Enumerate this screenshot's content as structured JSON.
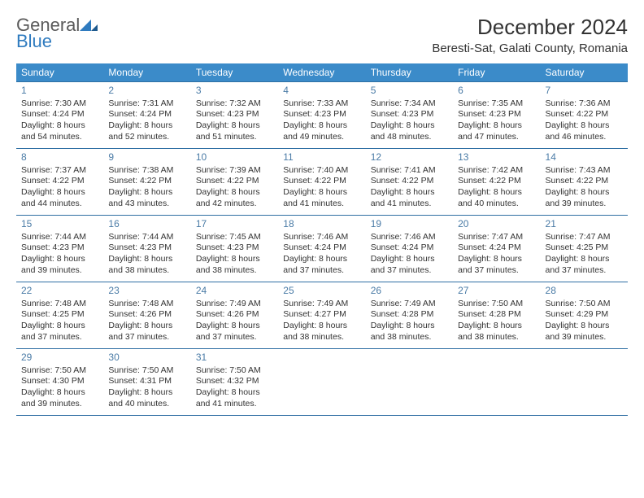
{
  "brand": {
    "word1": "General",
    "word2": "Blue"
  },
  "title": "December 2024",
  "location": "Beresti-Sat, Galati County, Romania",
  "colors": {
    "header_bg": "#3b8bc9",
    "header_text": "#ffffff",
    "border": "#2f6fa3",
    "daynum": "#4a7ba6",
    "body_text": "#333333",
    "brand_gray": "#5a5a5a",
    "brand_blue": "#2f7bbf"
  },
  "weekdays": [
    "Sunday",
    "Monday",
    "Tuesday",
    "Wednesday",
    "Thursday",
    "Friday",
    "Saturday"
  ],
  "days": [
    {
      "n": "1",
      "sr": "7:30 AM",
      "ss": "4:24 PM",
      "dl": "8 hours and 54 minutes."
    },
    {
      "n": "2",
      "sr": "7:31 AM",
      "ss": "4:24 PM",
      "dl": "8 hours and 52 minutes."
    },
    {
      "n": "3",
      "sr": "7:32 AM",
      "ss": "4:23 PM",
      "dl": "8 hours and 51 minutes."
    },
    {
      "n": "4",
      "sr": "7:33 AM",
      "ss": "4:23 PM",
      "dl": "8 hours and 49 minutes."
    },
    {
      "n": "5",
      "sr": "7:34 AM",
      "ss": "4:23 PM",
      "dl": "8 hours and 48 minutes."
    },
    {
      "n": "6",
      "sr": "7:35 AM",
      "ss": "4:23 PM",
      "dl": "8 hours and 47 minutes."
    },
    {
      "n": "7",
      "sr": "7:36 AM",
      "ss": "4:22 PM",
      "dl": "8 hours and 46 minutes."
    },
    {
      "n": "8",
      "sr": "7:37 AM",
      "ss": "4:22 PM",
      "dl": "8 hours and 44 minutes."
    },
    {
      "n": "9",
      "sr": "7:38 AM",
      "ss": "4:22 PM",
      "dl": "8 hours and 43 minutes."
    },
    {
      "n": "10",
      "sr": "7:39 AM",
      "ss": "4:22 PM",
      "dl": "8 hours and 42 minutes."
    },
    {
      "n": "11",
      "sr": "7:40 AM",
      "ss": "4:22 PM",
      "dl": "8 hours and 41 minutes."
    },
    {
      "n": "12",
      "sr": "7:41 AM",
      "ss": "4:22 PM",
      "dl": "8 hours and 41 minutes."
    },
    {
      "n": "13",
      "sr": "7:42 AM",
      "ss": "4:22 PM",
      "dl": "8 hours and 40 minutes."
    },
    {
      "n": "14",
      "sr": "7:43 AM",
      "ss": "4:22 PM",
      "dl": "8 hours and 39 minutes."
    },
    {
      "n": "15",
      "sr": "7:44 AM",
      "ss": "4:23 PM",
      "dl": "8 hours and 39 minutes."
    },
    {
      "n": "16",
      "sr": "7:44 AM",
      "ss": "4:23 PM",
      "dl": "8 hours and 38 minutes."
    },
    {
      "n": "17",
      "sr": "7:45 AM",
      "ss": "4:23 PM",
      "dl": "8 hours and 38 minutes."
    },
    {
      "n": "18",
      "sr": "7:46 AM",
      "ss": "4:24 PM",
      "dl": "8 hours and 37 minutes."
    },
    {
      "n": "19",
      "sr": "7:46 AM",
      "ss": "4:24 PM",
      "dl": "8 hours and 37 minutes."
    },
    {
      "n": "20",
      "sr": "7:47 AM",
      "ss": "4:24 PM",
      "dl": "8 hours and 37 minutes."
    },
    {
      "n": "21",
      "sr": "7:47 AM",
      "ss": "4:25 PM",
      "dl": "8 hours and 37 minutes."
    },
    {
      "n": "22",
      "sr": "7:48 AM",
      "ss": "4:25 PM",
      "dl": "8 hours and 37 minutes."
    },
    {
      "n": "23",
      "sr": "7:48 AM",
      "ss": "4:26 PM",
      "dl": "8 hours and 37 minutes."
    },
    {
      "n": "24",
      "sr": "7:49 AM",
      "ss": "4:26 PM",
      "dl": "8 hours and 37 minutes."
    },
    {
      "n": "25",
      "sr": "7:49 AM",
      "ss": "4:27 PM",
      "dl": "8 hours and 38 minutes."
    },
    {
      "n": "26",
      "sr": "7:49 AM",
      "ss": "4:28 PM",
      "dl": "8 hours and 38 minutes."
    },
    {
      "n": "27",
      "sr": "7:50 AM",
      "ss": "4:28 PM",
      "dl": "8 hours and 38 minutes."
    },
    {
      "n": "28",
      "sr": "7:50 AM",
      "ss": "4:29 PM",
      "dl": "8 hours and 39 minutes."
    },
    {
      "n": "29",
      "sr": "7:50 AM",
      "ss": "4:30 PM",
      "dl": "8 hours and 39 minutes."
    },
    {
      "n": "30",
      "sr": "7:50 AM",
      "ss": "4:31 PM",
      "dl": "8 hours and 40 minutes."
    },
    {
      "n": "31",
      "sr": "7:50 AM",
      "ss": "4:32 PM",
      "dl": "8 hours and 41 minutes."
    }
  ],
  "labels": {
    "sunrise": "Sunrise:",
    "sunset": "Sunset:",
    "daylight": "Daylight:"
  }
}
